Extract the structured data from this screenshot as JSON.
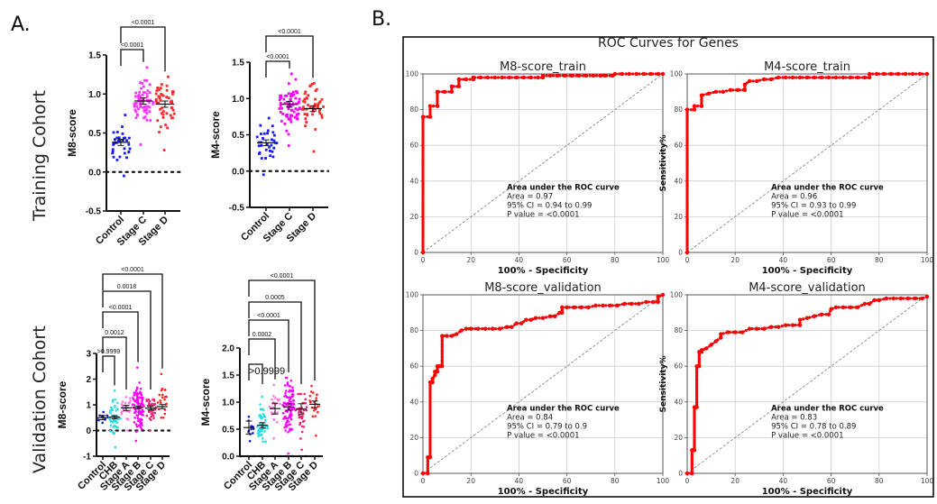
{
  "panel_labels": {
    "a": "A.",
    "b": "B."
  },
  "cohorts": {
    "training": "Training Cohort",
    "validation": "Validation Cohort"
  },
  "chart_data": [
    {
      "id": "train_m8",
      "type": "scatter",
      "title": "",
      "ylabel": "M8-score",
      "ylim": [
        -0.5,
        1.5
      ],
      "yticks": [
        -0.5,
        0.0,
        0.5,
        1.0,
        1.5
      ],
      "ytick_labels": [
        "-0.5",
        "0.0",
        "0.5",
        "1.0",
        "1.5"
      ],
      "reference_line": 0,
      "categories": [
        "Control",
        "Stage C",
        "Stage D"
      ],
      "colors": [
        "#1a1aff",
        "#ff33ff",
        "#ff2a2a"
      ],
      "groups": [
        {
          "name": "Control",
          "mean": 0.38,
          "sem": 0.04,
          "n": 34,
          "min": -0.05,
          "max": 0.73
        },
        {
          "name": "Stage C",
          "mean": 0.91,
          "sem": 0.04,
          "n": 70,
          "min": 0.35,
          "max": 1.34
        },
        {
          "name": "Stage D",
          "mean": 0.87,
          "sem": 0.04,
          "n": 50,
          "min": 0.28,
          "max": 1.22
        }
      ],
      "comparisons": [
        {
          "from": "Control",
          "to": "Stage C",
          "label": "<0.0001"
        },
        {
          "from": "Control",
          "to": "Stage D",
          "label": "<0.0001"
        }
      ]
    },
    {
      "id": "train_m4",
      "type": "scatter",
      "title": "",
      "ylabel": "M4-score",
      "ylim": [
        -0.5,
        1.5
      ],
      "yticks": [
        -0.5,
        0.0,
        0.5,
        1.0,
        1.5
      ],
      "ytick_labels": [
        "-0.5",
        "0.0",
        "0.5",
        "1.0",
        "1.5"
      ],
      "reference_line": 0,
      "categories": [
        "Control",
        "Stage C",
        "Stage D"
      ],
      "colors": [
        "#1a1aff",
        "#ff00ff",
        "#ff2a2a"
      ],
      "groups": [
        {
          "name": "Control",
          "mean": 0.39,
          "sem": 0.04,
          "n": 34,
          "min": -0.05,
          "max": 0.73
        },
        {
          "name": "Stage C",
          "mean": 0.92,
          "sem": 0.04,
          "n": 70,
          "min": 0.35,
          "max": 1.34
        },
        {
          "name": "Stage D",
          "mean": 0.86,
          "sem": 0.04,
          "n": 50,
          "min": 0.27,
          "max": 1.21
        }
      ],
      "comparisons": [
        {
          "from": "Control",
          "to": "Stage C",
          "label": "<0.0001"
        },
        {
          "from": "Control",
          "to": "Stage D",
          "label": "<0.0001"
        }
      ]
    },
    {
      "id": "val_m8",
      "type": "scatter",
      "title": "",
      "ylabel": "M8-score",
      "ylim": [
        -1,
        3
      ],
      "yticks": [
        -1,
        0,
        1,
        2,
        3
      ],
      "ytick_labels": [
        "-1",
        "0",
        "1",
        "2",
        "3"
      ],
      "reference_line": 0,
      "categories": [
        "Control",
        "CHB",
        "Stage A",
        "Stage B",
        "Stage C",
        "Stage D"
      ],
      "colors": [
        "#1a1acc",
        "#22e0e0",
        "#ff77dd",
        "#ff00ff",
        "#ee2277",
        "#ff2222"
      ],
      "groups": [
        {
          "name": "Control",
          "mean": 0.5,
          "sem": 0.08,
          "n": 12,
          "min": 0.3,
          "max": 0.72
        },
        {
          "name": "CHB",
          "mean": 0.52,
          "sem": 0.06,
          "n": 45,
          "min": -0.65,
          "max": 1.55
        },
        {
          "name": "Stage A",
          "mean": 0.88,
          "sem": 0.1,
          "n": 25,
          "min": 0.0,
          "max": 1.3
        },
        {
          "name": "Stage B",
          "mean": 0.9,
          "sem": 0.06,
          "n": 90,
          "min": -0.4,
          "max": 2.45
        },
        {
          "name": "Stage C",
          "mean": 0.87,
          "sem": 0.07,
          "n": 40,
          "min": 0.0,
          "max": 1.2
        },
        {
          "name": "Stage D",
          "mean": 0.93,
          "sem": 0.08,
          "n": 22,
          "min": 0.5,
          "max": 2.2
        }
      ],
      "comparisons": [
        {
          "from": "Control",
          "to": "CHB",
          "label": ">0.9999"
        },
        {
          "from": "Control",
          "to": "Stage A",
          "label": "0.0012"
        },
        {
          "from": "Control",
          "to": "Stage B",
          "label": "<0.0001"
        },
        {
          "from": "Control",
          "to": "Stage C",
          "label": "0.0018"
        },
        {
          "from": "Control",
          "to": "Stage D",
          "label": "<0.0001"
        }
      ]
    },
    {
      "id": "val_m4",
      "type": "scatter",
      "title": "",
      "ylabel": "M4-score",
      "ylim": [
        0,
        2
      ],
      "yticks": [
        0,
        0.5,
        1.0,
        1.5,
        2.0
      ],
      "ytick_labels": [
        "0.0",
        "0.5",
        "1.0",
        "1.5",
        "2.0"
      ],
      "reference_line": 0,
      "categories": [
        "Control",
        "CHB",
        "Stage A",
        "Stage B",
        "Stage C",
        "Stage D"
      ],
      "colors": [
        "#1a1acc",
        "#22e0e0",
        "#ff77dd",
        "#ff00ff",
        "#ee2277",
        "#ff2222"
      ],
      "groups": [
        {
          "name": "Control",
          "mean": 0.53,
          "sem": 0.12,
          "n": 14,
          "min": 0.28,
          "max": 0.73
        },
        {
          "name": "CHB",
          "mean": 0.57,
          "sem": 0.05,
          "n": 45,
          "min": 0.27,
          "max": 1.1
        },
        {
          "name": "Stage A",
          "mean": 0.88,
          "sem": 0.1,
          "n": 25,
          "min": 0.33,
          "max": 1.32
        },
        {
          "name": "Stage B",
          "mean": 0.91,
          "sem": 0.06,
          "n": 90,
          "min": 0.05,
          "max": 1.45
        },
        {
          "name": "Stage C",
          "mean": 0.87,
          "sem": 0.1,
          "n": 35,
          "min": 0.12,
          "max": 1.15
        },
        {
          "name": "Stage D",
          "mean": 0.96,
          "sem": 0.06,
          "n": 22,
          "min": 0.38,
          "max": 1.3
        }
      ],
      "comparisons": [
        {
          "from": "Control",
          "to": "CHB",
          "label": ">0.9999",
          "large": true
        },
        {
          "from": "Control",
          "to": "Stage A",
          "label": "0.0002"
        },
        {
          "from": "Control",
          "to": "Stage B",
          "label": "<0.0001"
        },
        {
          "from": "Control",
          "to": "Stage C",
          "label": "0.0005"
        },
        {
          "from": "Control",
          "to": "Stage D",
          "label": "<0.0001"
        }
      ]
    },
    {
      "id": "roc_m8_train",
      "type": "line",
      "title": "M8-score_train",
      "xlabel": "100% - Specificity",
      "ylabel": "",
      "xlim": [
        0,
        100
      ],
      "ylim": [
        0,
        100
      ],
      "xticks": [
        0,
        20,
        40,
        60,
        80,
        100
      ],
      "yticks": [
        0,
        20,
        40,
        60,
        80,
        100
      ],
      "grid": true,
      "diagonal": true,
      "x": [
        0,
        0,
        3,
        3,
        6,
        6,
        9,
        12,
        12,
        15,
        15,
        18,
        21,
        21,
        24,
        27,
        30,
        33,
        36,
        39,
        42,
        45,
        48,
        50,
        50,
        53,
        56,
        59,
        62,
        65,
        68,
        71,
        74,
        76,
        79,
        80,
        83,
        86,
        89,
        92,
        95,
        98,
        100
      ],
      "y": [
        0,
        76,
        76,
        82,
        82,
        90,
        90,
        90,
        93,
        93,
        97,
        97,
        97,
        98,
        98,
        98,
        98,
        98,
        98,
        98,
        98,
        98,
        98,
        98,
        99,
        99,
        99,
        99,
        99,
        99,
        99,
        99,
        99,
        99,
        99,
        100,
        100,
        100,
        100,
        100,
        100,
        100,
        100
      ],
      "annotation": {
        "heading": "Area under the ROC curve",
        "lines": [
          "Area = 0.97",
          "95% CI = 0.94 to 0.99",
          "P value = <0.0001"
        ]
      }
    },
    {
      "id": "roc_m4_train",
      "type": "line",
      "title": "M4-score_train",
      "xlabel": "100% - Specificity",
      "ylabel": "Sensitivity%",
      "xlim": [
        0,
        100
      ],
      "ylim": [
        0,
        100
      ],
      "xticks": [
        0,
        20,
        40,
        60,
        80,
        100
      ],
      "yticks": [
        0,
        20,
        40,
        60,
        80,
        100
      ],
      "grid": true,
      "diagonal": true,
      "x": [
        0,
        0,
        3,
        3,
        6,
        6,
        9,
        12,
        15,
        18,
        21,
        24,
        24,
        26,
        29,
        32,
        35,
        38,
        41,
        44,
        47,
        50,
        53,
        56,
        59,
        62,
        65,
        68,
        71,
        74,
        76,
        76,
        79,
        82,
        85,
        88,
        91,
        94,
        97,
        100
      ],
      "y": [
        0,
        80,
        80,
        82,
        82,
        88,
        89,
        90,
        90,
        91,
        91,
        91,
        94,
        96,
        96,
        97,
        97,
        98,
        98,
        98,
        98,
        98,
        98,
        98,
        98,
        98,
        98,
        98,
        98,
        98,
        98,
        100,
        100,
        100,
        100,
        100,
        100,
        100,
        100,
        100
      ],
      "annotation": {
        "heading": "Area under the ROC curve",
        "lines": [
          "Area = 0.96",
          "95% CI = 0.93 to 0.99",
          "P value = <0.0001"
        ]
      }
    },
    {
      "id": "roc_m8_val",
      "type": "line",
      "title": "M8-score_validation",
      "xlabel": "100% - Specificity",
      "ylabel": "",
      "xlim": [
        0,
        100
      ],
      "ylim": [
        0,
        100
      ],
      "xticks": [
        0,
        20,
        40,
        60,
        80,
        100
      ],
      "yticks": [
        0,
        20,
        40,
        60,
        80,
        100
      ],
      "grid": true,
      "diagonal": true,
      "x": [
        0,
        2,
        2,
        3,
        3,
        4,
        4,
        5,
        5,
        6,
        6,
        7,
        8,
        8,
        10,
        12,
        14,
        16,
        18,
        20,
        23,
        26,
        29,
        32,
        35,
        37,
        39,
        41,
        43,
        45,
        47,
        50,
        53,
        55,
        57,
        58,
        58,
        60,
        63,
        66,
        69,
        72,
        75,
        78,
        81,
        84,
        87,
        90,
        93,
        96,
        98,
        98,
        100
      ],
      "y": [
        0,
        0,
        9,
        9,
        51,
        51,
        53,
        55,
        57,
        57,
        60,
        60,
        60,
        77,
        77,
        77,
        78,
        80,
        81,
        81,
        81,
        81,
        81,
        81,
        82,
        82,
        84,
        84,
        86,
        86,
        87,
        87,
        88,
        88,
        90,
        90,
        93,
        93,
        93,
        93,
        93,
        94,
        94,
        94,
        94,
        95,
        95,
        95,
        96,
        96,
        96,
        99,
        100
      ],
      "annotation": {
        "heading": "Area under the ROC curve",
        "lines": [
          "Area = 0.84",
          "95% CI = 0.79 to 0.9",
          "P value = <0.0001"
        ]
      }
    },
    {
      "id": "roc_m4_val",
      "type": "line",
      "title": "M4-score_validation",
      "xlabel": "100% - Specificity",
      "ylabel": "Sensitivity%",
      "xlim": [
        0,
        100
      ],
      "ylim": [
        0,
        100
      ],
      "xticks": [
        0,
        20,
        40,
        60,
        80,
        100
      ],
      "yticks": [
        0,
        20,
        40,
        60,
        80,
        100
      ],
      "grid": true,
      "diagonal": true,
      "x": [
        0,
        2,
        2,
        3,
        3,
        4,
        4,
        5,
        5,
        6,
        6,
        8,
        10,
        12,
        14,
        14,
        17,
        20,
        23,
        26,
        29,
        32,
        35,
        38,
        41,
        44,
        47,
        47,
        50,
        53,
        56,
        59,
        60,
        62,
        65,
        68,
        71,
        74,
        76,
        78,
        80,
        83,
        86,
        89,
        92,
        95,
        98,
        100
      ],
      "y": [
        0,
        0,
        13,
        13,
        37,
        37,
        60,
        60,
        68,
        68,
        69,
        70,
        72,
        74,
        76,
        78,
        79,
        79,
        79,
        81,
        81,
        81,
        82,
        82,
        83,
        83,
        83,
        86,
        87,
        88,
        89,
        89,
        92,
        93,
        93,
        93,
        93,
        95,
        95,
        97,
        97,
        98,
        98,
        98,
        98,
        98,
        98,
        99
      ],
      "annotation": {
        "heading": "Area under the ROC curve",
        "lines": [
          "Area = 0.83",
          "95% CI = 0.78 to 0.89",
          "P value = <0.0001"
        ]
      }
    }
  ],
  "roc_panel": {
    "suptitle": "ROC Curves for Genes"
  }
}
